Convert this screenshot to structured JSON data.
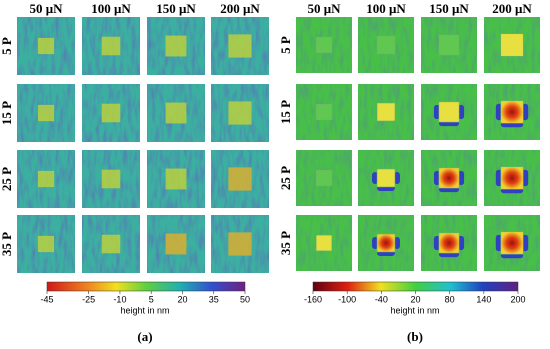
{
  "panels": [
    {
      "label": "(a)",
      "columns": [
        "50 μN",
        "100 μN",
        "150 μN",
        "200 μN"
      ],
      "rows": [
        "5 P",
        "15 P",
        "25 P",
        "35 P"
      ],
      "colorbar": {
        "ticks": [
          -45,
          -25,
          -10,
          5,
          20,
          35,
          50
        ],
        "label": "height in nm"
      }
    },
    {
      "label": "(b)",
      "columns": [
        "50 μN",
        "100 μN",
        "150 μN",
        "200 μN"
      ],
      "rows": [
        "5 P",
        "15 P",
        "25 P",
        "35 P"
      ],
      "colorbar": {
        "ticks": [
          -160,
          -100,
          -40,
          20,
          80,
          140,
          200
        ],
        "label": "height in nm"
      }
    }
  ]
}
